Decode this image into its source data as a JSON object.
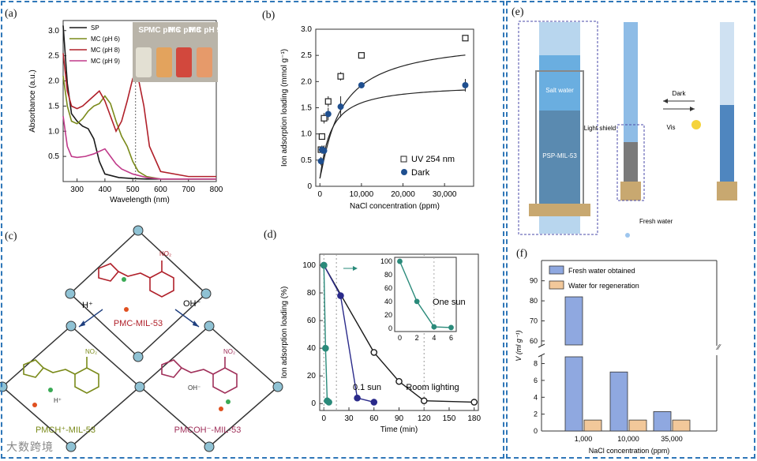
{
  "panel_labels": {
    "a": "(a)",
    "b": "(b)",
    "c": "(c)",
    "d": "(d)",
    "e": "(e)",
    "f": "(f)"
  },
  "watermark": "大数跨境",
  "vials": [
    "SP",
    "MC pH 6",
    "MC pH 8",
    "MC pH 9"
  ],
  "colors": {
    "frame": "#2f77b8",
    "sp": "#1a1a1a",
    "mc6": "#7a8a1a",
    "mc8": "#b0202a",
    "mc9": "#c03a8a",
    "uv": "#333333",
    "dark": "#1f4f8f",
    "teal": "#2a8a7a",
    "navy": "#2a2a8a",
    "fresh": "#8fa8e0",
    "regen": "#f2c89a"
  },
  "chart_data": [
    {
      "id": "a",
      "type": "line",
      "xlabel": "Wavelength (nm)",
      "ylabel": "Absorbance (a.u.)",
      "xlim": [
        250,
        800
      ],
      "ylim": [
        0,
        3.2
      ],
      "xticks": [
        300,
        400,
        500,
        600,
        700,
        800
      ],
      "yticks": [
        0.5,
        1.0,
        1.5,
        2.0,
        2.5,
        3.0
      ],
      "ytick_labels": [
        "0.5",
        "1.0",
        "1.5",
        "2.0",
        "2.5",
        "3.0"
      ],
      "series": [
        {
          "name": "SP",
          "color": "#1a1a1a",
          "x": [
            250,
            265,
            280,
            300,
            320,
            340,
            360,
            380,
            400,
            450,
            500,
            550,
            600,
            650,
            700,
            800
          ],
          "y": [
            3.1,
            1.95,
            1.35,
            1.2,
            1.1,
            1.05,
            0.85,
            0.4,
            0.15,
            0.08,
            0.06,
            0.05,
            0.05,
            0.05,
            0.05,
            0.05
          ]
        },
        {
          "name": "MC (pH 6)",
          "color": "#7a8a1a",
          "x": [
            250,
            265,
            280,
            300,
            320,
            340,
            360,
            380,
            400,
            420,
            440,
            460,
            480,
            500,
            520,
            550,
            600,
            700,
            800
          ],
          "y": [
            2.1,
            1.5,
            1.2,
            1.15,
            1.25,
            1.4,
            1.5,
            1.55,
            1.7,
            1.55,
            1.2,
            0.9,
            0.7,
            0.4,
            0.2,
            0.1,
            0.05,
            0.05,
            0.05
          ]
        },
        {
          "name": "MC (pH 8)",
          "color": "#b0202a",
          "x": [
            250,
            265,
            280,
            300,
            320,
            340,
            360,
            380,
            400,
            420,
            440,
            460,
            480,
            500,
            510,
            520,
            540,
            560,
            600,
            700,
            800
          ],
          "y": [
            2.55,
            1.8,
            1.5,
            1.45,
            1.5,
            1.6,
            1.7,
            1.8,
            1.6,
            1.3,
            1.0,
            1.2,
            1.6,
            2.05,
            2.12,
            2.05,
            1.5,
            0.7,
            0.2,
            0.1,
            0.1
          ]
        },
        {
          "name": "MC (pH 9)",
          "color": "#c03a8a",
          "x": [
            250,
            265,
            280,
            300,
            330,
            360,
            380,
            400,
            420,
            440,
            460,
            500,
            550,
            600,
            700,
            800
          ],
          "y": [
            1.3,
            0.7,
            0.5,
            0.48,
            0.5,
            0.55,
            0.6,
            0.65,
            0.5,
            0.35,
            0.25,
            0.15,
            0.08,
            0.05,
            0.05,
            0.05
          ]
        }
      ],
      "annotation_x": 510
    },
    {
      "id": "b",
      "type": "scatter",
      "xlabel": "NaCl concentration (ppm)",
      "ylabel": "Ion adsorption loading (mmol g⁻¹)",
      "xlim": [
        -1000,
        37000
      ],
      "ylim": [
        0,
        3.0
      ],
      "xticks": [
        0,
        10000,
        20000,
        30000
      ],
      "xtick_labels": [
        "0",
        "10,000",
        "20,000",
        "30,000"
      ],
      "yticks": [
        0,
        0.5,
        1.0,
        1.5,
        2.0,
        2.5,
        3.0
      ],
      "ytick_labels": [
        "0",
        "0.5",
        "1.0",
        "1.5",
        "2.0",
        "2.5",
        "3.0"
      ],
      "series": [
        {
          "name": "UV 254 nm",
          "marker": "square",
          "x": [
            250,
            500,
            1000,
            2000,
            5000,
            10000,
            35000
          ],
          "y": [
            0.7,
            0.95,
            1.3,
            1.62,
            2.1,
            2.5,
            2.83
          ],
          "err": [
            0.05,
            0.05,
            0.1,
            0.1,
            0.08,
            0.05,
            0.03
          ]
        },
        {
          "name": "Dark",
          "marker": "circle",
          "x": [
            250,
            500,
            1000,
            2000,
            5000,
            10000,
            35000
          ],
          "y": [
            0.48,
            0.7,
            0.68,
            1.38,
            1.52,
            1.93,
            1.93
          ],
          "err": [
            0.08,
            0.08,
            0.1,
            0.12,
            0.2,
            0.05,
            0.12
          ]
        }
      ]
    },
    {
      "id": "d",
      "type": "line",
      "xlabel": "Time (min)",
      "ylabel": "Ion adsorption loading (%)",
      "xlim": [
        -5,
        185
      ],
      "ylim": [
        -5,
        108
      ],
      "xticks": [
        0,
        30,
        60,
        90,
        120,
        150,
        180
      ],
      "yticks": [
        0,
        20,
        40,
        60,
        80,
        100
      ],
      "series": [
        {
          "name": "Room lighting",
          "color": "#1a1a1a",
          "x": [
            0,
            60,
            90,
            120,
            180
          ],
          "y": [
            100,
            37,
            16,
            2,
            1
          ]
        },
        {
          "name": "0.1 sun",
          "color": "#2a2a8a",
          "x": [
            0,
            20,
            40,
            60
          ],
          "y": [
            100,
            78,
            4,
            1
          ]
        },
        {
          "name": "One sun",
          "color": "#2a8a7a",
          "x": [
            0,
            2,
            4,
            6
          ],
          "y": [
            100,
            40,
            2,
            1
          ]
        }
      ],
      "inset": {
        "xlim": [
          -0.6,
          6.6
        ],
        "ylim": [
          -5,
          106
        ],
        "xticks": [
          0,
          2,
          4,
          6
        ],
        "yticks": [
          0,
          20,
          40,
          60,
          80,
          100
        ],
        "x": [
          0,
          2,
          4,
          6
        ],
        "y": [
          100,
          40,
          2,
          1
        ],
        "label": "One sun"
      }
    },
    {
      "id": "f",
      "type": "bar",
      "xlabel": "NaCl concentration (ppm)",
      "ylabel": "V (ml g⁻¹)",
      "categories": [
        "1,000",
        "10,000",
        "35,000"
      ],
      "series": [
        {
          "name": "Fresh water obtained",
          "values": [
            82,
            7,
            2.3
          ]
        },
        {
          "name": "Water for regeneration",
          "values": [
            1.3,
            1.3,
            1.3
          ]
        }
      ],
      "yticks_upper": [
        60,
        70,
        80,
        90
      ],
      "yticks_lower": [
        0,
        2,
        4,
        6,
        8
      ],
      "broken_axis": [
        8.8,
        60
      ]
    }
  ],
  "panel_c": {
    "node_top": "PMC-MIL-53",
    "node_left": "PMCH⁺-MIL-53",
    "node_right": "PMCOH⁻-MIL-53",
    "arrow_left": "H⁺",
    "arrow_right": "OH⁻",
    "no2": "NO₂",
    "hplus": "H⁺",
    "oh": "OH⁻"
  },
  "panel_e": {
    "salt_water": "Salt water",
    "psp": "PSP-MIL-53",
    "light_shield": "Light shield",
    "fresh_water": "Fresh water",
    "dark": "Dark",
    "vis": "Vis"
  }
}
